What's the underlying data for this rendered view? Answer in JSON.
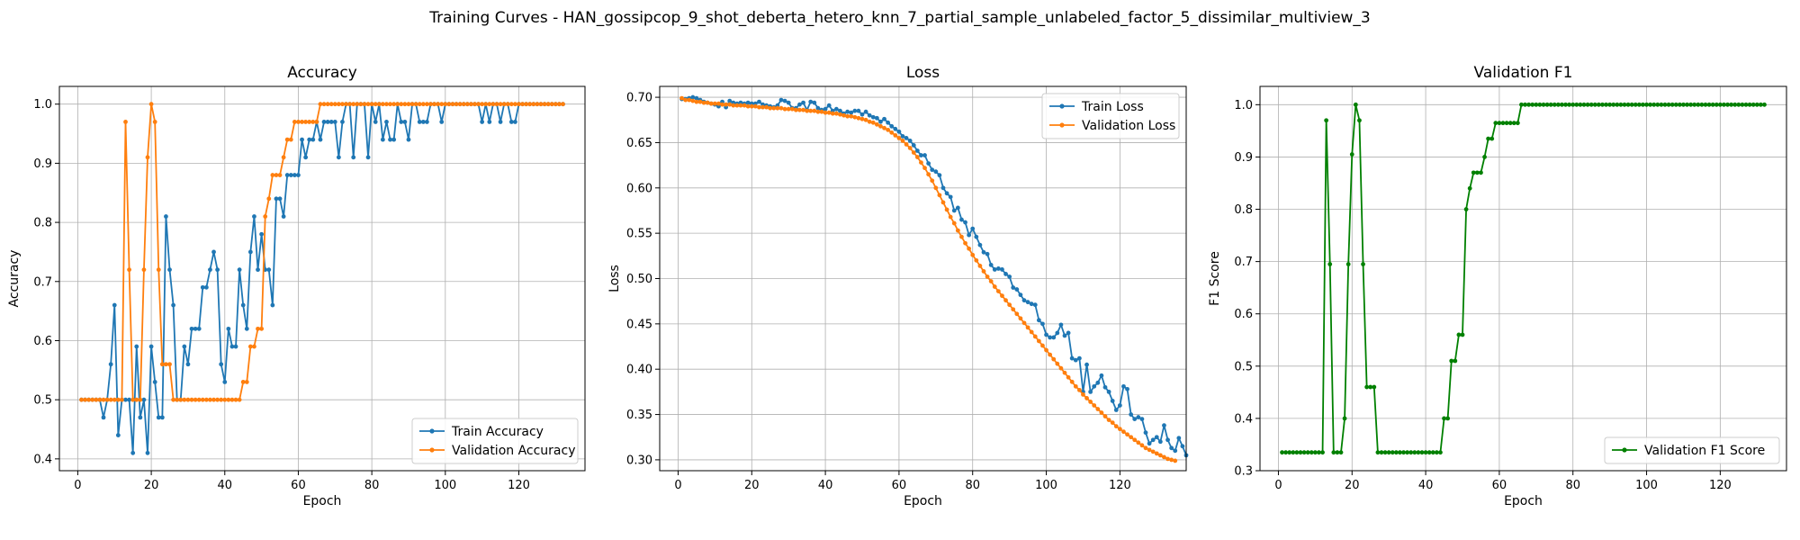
{
  "suptitle": "Training Curves - HAN_gossipcop_9_shot_deberta_hetero_knn_7_partial_sample_unlabeled_factor_5_dissimilar_multiview_3",
  "colors": {
    "blue": "#1f77b4",
    "orange": "#ff7f0e",
    "green": "#008000",
    "grid": "#b0b0b0"
  },
  "chart_data": [
    {
      "type": "line",
      "title": "Accuracy",
      "xlabel": "Epoch",
      "ylabel": "Accuracy",
      "xlim": [
        -5,
        138
      ],
      "ylim": [
        0.38,
        1.03
      ],
      "xticks": [
        0,
        20,
        40,
        60,
        80,
        100,
        120
      ],
      "yticks": [
        0.4,
        0.5,
        0.6,
        0.7,
        0.8,
        0.9,
        1.0
      ],
      "ytick_labels": [
        "0.4",
        "0.5",
        "0.6",
        "0.7",
        "0.8",
        "0.9",
        "1.0"
      ],
      "grid": true,
      "legend": "lower-right",
      "series": [
        {
          "name": "Train Accuracy",
          "color": "#1f77b4",
          "values": [
            0.5,
            0.5,
            0.5,
            0.5,
            0.5,
            0.5,
            0.47,
            0.5,
            0.56,
            0.66,
            0.44,
            0.5,
            0.5,
            0.5,
            0.41,
            0.59,
            0.47,
            0.5,
            0.41,
            0.59,
            0.53,
            0.47,
            0.47,
            0.81,
            0.72,
            0.66,
            0.5,
            0.5,
            0.59,
            0.56,
            0.62,
            0.62,
            0.62,
            0.69,
            0.69,
            0.72,
            0.75,
            0.72,
            0.56,
            0.53,
            0.62,
            0.59,
            0.59,
            0.72,
            0.66,
            0.62,
            0.75,
            0.81,
            0.72,
            0.78,
            0.72,
            0.72,
            0.66,
            0.84,
            0.84,
            0.81,
            0.88,
            0.88,
            0.88,
            0.88,
            0.94,
            0.91,
            0.94,
            0.94,
            0.97,
            0.94,
            0.97,
            0.97,
            0.97,
            0.97,
            0.91,
            0.97,
            1.0,
            1.0,
            0.91,
            1.0,
            1.0,
            1.0,
            0.91,
            1.0,
            0.97,
            1.0,
            0.94,
            0.97,
            0.94,
            0.94,
            1.0,
            0.97,
            0.97,
            0.94,
            1.0,
            1.0,
            0.97,
            0.97,
            0.97,
            1.0,
            1.0,
            1.0,
            0.97,
            1.0,
            1.0,
            1.0,
            1.0,
            1.0,
            1.0,
            1.0,
            1.0,
            1.0,
            1.0,
            0.97,
            1.0,
            0.97,
            1.0,
            1.0,
            0.97,
            1.0,
            1.0,
            0.97,
            0.97,
            1.0,
            1.0,
            1.0,
            1.0,
            1.0,
            1.0,
            1.0,
            1.0,
            1.0,
            1.0,
            1.0,
            1.0,
            1.0
          ]
        },
        {
          "name": "Validation Accuracy",
          "color": "#ff7f0e",
          "values": [
            0.5,
            0.5,
            0.5,
            0.5,
            0.5,
            0.5,
            0.5,
            0.5,
            0.5,
            0.5,
            0.5,
            0.5,
            0.97,
            0.72,
            0.5,
            0.5,
            0.5,
            0.72,
            0.91,
            1.0,
            0.97,
            0.72,
            0.56,
            0.56,
            0.56,
            0.5,
            0.5,
            0.5,
            0.5,
            0.5,
            0.5,
            0.5,
            0.5,
            0.5,
            0.5,
            0.5,
            0.5,
            0.5,
            0.5,
            0.5,
            0.5,
            0.5,
            0.5,
            0.5,
            0.53,
            0.53,
            0.59,
            0.59,
            0.62,
            0.62,
            0.81,
            0.84,
            0.88,
            0.88,
            0.88,
            0.91,
            0.94,
            0.94,
            0.97,
            0.97,
            0.97,
            0.97,
            0.97,
            0.97,
            0.97,
            1.0,
            1.0,
            1.0,
            1.0,
            1.0,
            1.0,
            1.0,
            1.0,
            1.0,
            1.0,
            1.0,
            1.0,
            1.0,
            1.0,
            1.0,
            1.0,
            1.0,
            1.0,
            1.0,
            1.0,
            1.0,
            1.0,
            1.0,
            1.0,
            1.0,
            1.0,
            1.0,
            1.0,
            1.0,
            1.0,
            1.0,
            1.0,
            1.0,
            1.0,
            1.0,
            1.0,
            1.0,
            1.0,
            1.0,
            1.0,
            1.0,
            1.0,
            1.0,
            1.0,
            1.0,
            1.0,
            1.0,
            1.0,
            1.0,
            1.0,
            1.0,
            1.0,
            1.0,
            1.0,
            1.0,
            1.0,
            1.0,
            1.0,
            1.0,
            1.0,
            1.0,
            1.0,
            1.0,
            1.0,
            1.0,
            1.0,
            1.0
          ]
        }
      ]
    },
    {
      "type": "line",
      "title": "Loss",
      "xlabel": "Epoch",
      "ylabel": "Loss",
      "xlim": [
        -5,
        138
      ],
      "ylim": [
        0.288,
        0.712
      ],
      "xticks": [
        0,
        20,
        40,
        60,
        80,
        100,
        120
      ],
      "yticks": [
        0.3,
        0.35,
        0.4,
        0.45,
        0.5,
        0.55,
        0.6,
        0.65,
        0.7
      ],
      "ytick_labels": [
        "0.30",
        "0.35",
        "0.40",
        "0.45",
        "0.50",
        "0.55",
        "0.60",
        "0.65",
        "0.70"
      ],
      "grid": true,
      "legend": "top-right",
      "series": [
        {
          "name": "Train Loss",
          "color": "#1f77b4",
          "values": [
            0.698,
            0.698,
            0.699,
            0.7,
            0.699,
            0.697,
            0.695,
            0.694,
            0.693,
            0.692,
            0.69,
            0.695,
            0.689,
            0.696,
            0.694,
            0.693,
            0.694,
            0.693,
            0.694,
            0.693,
            0.693,
            0.695,
            0.692,
            0.691,
            0.69,
            0.689,
            0.691,
            0.697,
            0.696,
            0.694,
            0.688,
            0.688,
            0.692,
            0.694,
            0.686,
            0.695,
            0.694,
            0.688,
            0.686,
            0.687,
            0.691,
            0.685,
            0.687,
            0.685,
            0.682,
            0.684,
            0.683,
            0.685,
            0.685,
            0.681,
            0.684,
            0.68,
            0.678,
            0.677,
            0.673,
            0.676,
            0.672,
            0.668,
            0.665,
            0.662,
            0.657,
            0.655,
            0.652,
            0.647,
            0.641,
            0.636,
            0.636,
            0.627,
            0.62,
            0.618,
            0.614,
            0.6,
            0.594,
            0.59,
            0.575,
            0.578,
            0.565,
            0.562,
            0.548,
            0.555,
            0.546,
            0.537,
            0.529,
            0.527,
            0.515,
            0.51,
            0.511,
            0.51,
            0.505,
            0.502,
            0.49,
            0.488,
            0.482,
            0.476,
            0.474,
            0.472,
            0.471,
            0.454,
            0.45,
            0.438,
            0.435,
            0.435,
            0.44,
            0.449,
            0.437,
            0.44,
            0.412,
            0.41,
            0.412,
            0.375,
            0.405,
            0.375,
            0.381,
            0.385,
            0.393,
            0.38,
            0.375,
            0.365,
            0.355,
            0.36,
            0.381,
            0.378,
            0.35,
            0.345,
            0.347,
            0.345,
            0.33,
            0.318,
            0.322,
            0.325,
            0.32,
            0.338,
            0.322,
            0.313,
            0.31,
            0.324,
            0.315,
            0.305
          ]
        },
        {
          "name": "Validation Loss",
          "color": "#ff7f0e",
          "values": [
            0.699,
            0.697,
            0.697,
            0.696,
            0.695,
            0.695,
            0.694,
            0.694,
            0.693,
            0.693,
            0.693,
            0.692,
            0.692,
            0.692,
            0.691,
            0.691,
            0.691,
            0.691,
            0.69,
            0.69,
            0.69,
            0.689,
            0.689,
            0.689,
            0.688,
            0.688,
            0.688,
            0.688,
            0.687,
            0.687,
            0.687,
            0.686,
            0.686,
            0.686,
            0.685,
            0.685,
            0.685,
            0.684,
            0.684,
            0.683,
            0.683,
            0.682,
            0.682,
            0.681,
            0.68,
            0.679,
            0.679,
            0.678,
            0.677,
            0.676,
            0.675,
            0.673,
            0.672,
            0.67,
            0.668,
            0.666,
            0.664,
            0.661,
            0.658,
            0.655,
            0.652,
            0.648,
            0.644,
            0.639,
            0.634,
            0.628,
            0.622,
            0.615,
            0.608,
            0.6,
            0.592,
            0.584,
            0.576,
            0.568,
            0.561,
            0.553,
            0.546,
            0.539,
            0.533,
            0.526,
            0.52,
            0.514,
            0.508,
            0.502,
            0.497,
            0.491,
            0.486,
            0.481,
            0.476,
            0.471,
            0.466,
            0.461,
            0.456,
            0.451,
            0.446,
            0.441,
            0.436,
            0.431,
            0.426,
            0.421,
            0.416,
            0.411,
            0.406,
            0.401,
            0.396,
            0.391,
            0.386,
            0.381,
            0.377,
            0.372,
            0.368,
            0.364,
            0.36,
            0.356,
            0.352,
            0.348,
            0.344,
            0.341,
            0.337,
            0.334,
            0.331,
            0.328,
            0.325,
            0.322,
            0.319,
            0.316,
            0.313,
            0.311,
            0.309,
            0.307,
            0.305,
            0.303,
            0.301,
            0.3,
            0.299
          ]
        }
      ]
    },
    {
      "type": "line",
      "title": "Validation F1",
      "xlabel": "Epoch",
      "ylabel": "F1 Score",
      "xlim": [
        -5,
        138
      ],
      "ylim": [
        0.3,
        1.035
      ],
      "xticks": [
        0,
        20,
        40,
        60,
        80,
        100,
        120
      ],
      "yticks": [
        0.3,
        0.4,
        0.5,
        0.6,
        0.7,
        0.8,
        0.9,
        1.0
      ],
      "ytick_labels": [
        "0.3",
        "0.4",
        "0.5",
        "0.6",
        "0.7",
        "0.8",
        "0.9",
        "1.0"
      ],
      "grid": true,
      "legend": "lower-right",
      "series": [
        {
          "name": "Validation F1 Score",
          "color": "#008000",
          "values": [
            0.335,
            0.335,
            0.335,
            0.335,
            0.335,
            0.335,
            0.335,
            0.335,
            0.335,
            0.335,
            0.335,
            0.335,
            0.97,
            0.695,
            0.335,
            0.335,
            0.335,
            0.4,
            0.695,
            0.905,
            1.0,
            0.97,
            0.695,
            0.46,
            0.46,
            0.46,
            0.335,
            0.335,
            0.335,
            0.335,
            0.335,
            0.335,
            0.335,
            0.335,
            0.335,
            0.335,
            0.335,
            0.335,
            0.335,
            0.335,
            0.335,
            0.335,
            0.335,
            0.335,
            0.4,
            0.4,
            0.51,
            0.51,
            0.56,
            0.56,
            0.8,
            0.84,
            0.87,
            0.87,
            0.87,
            0.9,
            0.935,
            0.935,
            0.965,
            0.965,
            0.965,
            0.965,
            0.965,
            0.965,
            0.965,
            1.0,
            1.0,
            1.0,
            1.0,
            1.0,
            1.0,
            1.0,
            1.0,
            1.0,
            1.0,
            1.0,
            1.0,
            1.0,
            1.0,
            1.0,
            1.0,
            1.0,
            1.0,
            1.0,
            1.0,
            1.0,
            1.0,
            1.0,
            1.0,
            1.0,
            1.0,
            1.0,
            1.0,
            1.0,
            1.0,
            1.0,
            1.0,
            1.0,
            1.0,
            1.0,
            1.0,
            1.0,
            1.0,
            1.0,
            1.0,
            1.0,
            1.0,
            1.0,
            1.0,
            1.0,
            1.0,
            1.0,
            1.0,
            1.0,
            1.0,
            1.0,
            1.0,
            1.0,
            1.0,
            1.0,
            1.0,
            1.0,
            1.0,
            1.0,
            1.0,
            1.0,
            1.0,
            1.0,
            1.0,
            1.0,
            1.0,
            1.0
          ]
        }
      ]
    }
  ]
}
